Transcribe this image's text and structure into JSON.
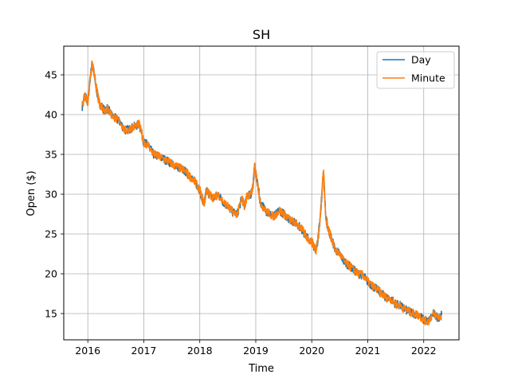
{
  "chart_data": {
    "type": "line",
    "title": "SH",
    "xlabel": "Time",
    "ylabel": "Open ($)",
    "xlim": [
      2015.57,
      2022.63
    ],
    "ylim": [
      11.7,
      48.6
    ],
    "x_ticks": [
      2016,
      2017,
      2018,
      2019,
      2020,
      2021,
      2022
    ],
    "x_tick_labels": [
      "2016",
      "2017",
      "2018",
      "2019",
      "2020",
      "2021",
      "2022"
    ],
    "y_ticks": [
      15,
      20,
      25,
      30,
      35,
      40,
      45
    ],
    "y_tick_labels": [
      "15",
      "20",
      "25",
      "30",
      "35",
      "40",
      "45"
    ],
    "grid": true,
    "legend": {
      "position": "top-right"
    },
    "colors": {
      "day": "#1f77b4",
      "minute": "#ff7f0e",
      "grid": "#b0b0b0"
    },
    "series": [
      {
        "name": "Day",
        "color": "#1f77b4",
        "x": [
          2015.9,
          2015.95,
          2016.0,
          2016.04,
          2016.08,
          2016.12,
          2016.16,
          2016.2,
          2016.25,
          2016.3,
          2016.35,
          2016.42,
          2016.5,
          2016.58,
          2016.66,
          2016.75,
          2016.83,
          2016.92,
          2017.0,
          2017.08,
          2017.17,
          2017.25,
          2017.33,
          2017.42,
          2017.5,
          2017.58,
          2017.67,
          2017.75,
          2017.83,
          2017.92,
          2018.0,
          2018.04,
          2018.08,
          2018.12,
          2018.17,
          2018.25,
          2018.33,
          2018.42,
          2018.5,
          2018.58,
          2018.67,
          2018.75,
          2018.8,
          2018.85,
          2018.9,
          2018.95,
          2018.98,
          2019.0,
          2019.04,
          2019.08,
          2019.17,
          2019.25,
          2019.33,
          2019.42,
          2019.5,
          2019.58,
          2019.67,
          2019.75,
          2019.83,
          2019.92,
          2020.0,
          2020.04,
          2020.08,
          2020.12,
          2020.15,
          2020.18,
          2020.21,
          2020.25,
          2020.3,
          2020.35,
          2020.42,
          2020.5,
          2020.58,
          2020.67,
          2020.75,
          2020.83,
          2020.92,
          2021.0,
          2021.08,
          2021.17,
          2021.25,
          2021.33,
          2021.42,
          2021.5,
          2021.58,
          2021.67,
          2021.75,
          2021.83,
          2021.92,
          2022.0,
          2022.08,
          2022.17,
          2022.25,
          2022.32
        ],
        "y": [
          41.0,
          42.5,
          41.5,
          44.5,
          46.5,
          44.8,
          43.0,
          41.5,
          41.0,
          40.5,
          40.8,
          40.0,
          39.5,
          39.0,
          38.0,
          38.2,
          38.5,
          38.8,
          36.5,
          36.2,
          35.0,
          34.8,
          34.5,
          34.2,
          33.8,
          33.5,
          33.2,
          32.8,
          32.2,
          31.5,
          30.5,
          29.5,
          28.8,
          30.5,
          30.0,
          29.5,
          30.0,
          29.0,
          28.5,
          27.8,
          27.5,
          29.5,
          28.5,
          30.0,
          29.8,
          31.0,
          33.5,
          32.5,
          31.0,
          29.0,
          28.0,
          27.5,
          27.2,
          28.0,
          27.5,
          27.0,
          26.5,
          26.2,
          25.5,
          24.5,
          24.0,
          23.5,
          23.0,
          25.0,
          27.0,
          30.0,
          33.0,
          27.0,
          25.5,
          24.5,
          23.0,
          22.5,
          21.5,
          21.0,
          20.5,
          20.0,
          19.8,
          19.0,
          18.5,
          18.0,
          17.5,
          17.0,
          16.8,
          16.2,
          16.0,
          15.5,
          15.2,
          15.0,
          14.8,
          14.2,
          14.0,
          15.0,
          14.5,
          14.8
        ]
      },
      {
        "name": "Minute",
        "color": "#ff7f0e",
        "x": [
          2015.9,
          2015.95,
          2016.0,
          2016.04,
          2016.08,
          2016.12,
          2016.16,
          2016.2,
          2016.25,
          2016.3,
          2016.35,
          2016.42,
          2016.5,
          2016.58,
          2016.66,
          2016.75,
          2016.83,
          2016.92,
          2017.0,
          2017.08,
          2017.17,
          2017.25,
          2017.33,
          2017.42,
          2017.5,
          2017.58,
          2017.67,
          2017.75,
          2017.83,
          2017.92,
          2018.0,
          2018.04,
          2018.08,
          2018.12,
          2018.17,
          2018.25,
          2018.33,
          2018.42,
          2018.5,
          2018.58,
          2018.67,
          2018.75,
          2018.8,
          2018.85,
          2018.9,
          2018.95,
          2018.98,
          2019.0,
          2019.04,
          2019.08,
          2019.17,
          2019.25,
          2019.33,
          2019.42,
          2019.5,
          2019.58,
          2019.67,
          2019.75,
          2019.83,
          2019.92,
          2020.0,
          2020.04,
          2020.08,
          2020.12,
          2020.15,
          2020.18,
          2020.21,
          2020.25,
          2020.3,
          2020.35,
          2020.42,
          2020.5,
          2020.58,
          2020.67,
          2020.75,
          2020.83,
          2020.92,
          2021.0,
          2021.08,
          2021.17,
          2021.25,
          2021.33,
          2021.42,
          2021.5,
          2021.58,
          2021.67,
          2021.75,
          2021.83,
          2021.92,
          2022.0,
          2022.08,
          2022.17,
          2022.25,
          2022.32
        ],
        "y": [
          41.0,
          42.5,
          41.5,
          44.5,
          46.5,
          44.8,
          43.0,
          41.5,
          41.0,
          40.5,
          40.8,
          40.0,
          39.5,
          39.0,
          38.0,
          38.2,
          38.5,
          38.8,
          36.5,
          36.2,
          35.0,
          34.8,
          34.5,
          34.2,
          33.8,
          33.5,
          33.2,
          32.8,
          32.2,
          31.5,
          30.5,
          29.5,
          28.8,
          30.5,
          30.0,
          29.5,
          30.0,
          29.0,
          28.5,
          27.8,
          27.5,
          29.5,
          28.5,
          30.0,
          29.8,
          31.0,
          33.5,
          32.5,
          31.0,
          29.0,
          28.0,
          27.5,
          27.2,
          28.0,
          27.5,
          27.0,
          26.5,
          26.2,
          25.5,
          24.5,
          24.0,
          23.5,
          23.0,
          25.0,
          27.0,
          30.0,
          33.0,
          27.0,
          25.5,
          24.5,
          23.0,
          22.5,
          21.5,
          21.0,
          20.5,
          20.0,
          19.8,
          19.0,
          18.5,
          18.0,
          17.5,
          17.0,
          16.8,
          16.2,
          16.0,
          15.5,
          15.2,
          15.0,
          14.8,
          14.2,
          14.0,
          15.0,
          14.5,
          14.8
        ]
      }
    ]
  }
}
